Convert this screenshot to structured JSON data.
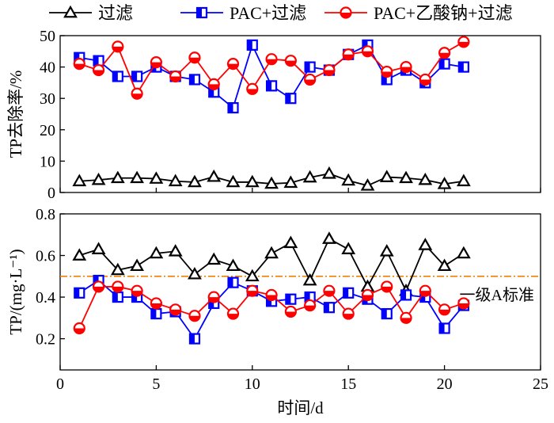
{
  "chart_data": [
    {
      "type": "line",
      "panel": "top",
      "ylabel": "TP去除率/%",
      "ylim": [
        0,
        50
      ],
      "yticks": [
        0,
        10,
        20,
        30,
        40,
        50
      ],
      "xlim": [
        0,
        25
      ],
      "grid": false,
      "legend": "top (shared)",
      "series": [
        {
          "name": "过滤",
          "color": "#000000",
          "marker": "triangle",
          "x": [
            1,
            2,
            3,
            4,
            5,
            6,
            7,
            8,
            9,
            10,
            11,
            12,
            13,
            14,
            15,
            16,
            17,
            18,
            19,
            20,
            21
          ],
          "values": [
            3.6,
            4.0,
            4.6,
            4.6,
            4.4,
            3.6,
            3.3,
            5.0,
            3.3,
            3.3,
            2.8,
            3.1,
            4.8,
            6.0,
            3.8,
            2.2,
            4.9,
            4.6,
            4.0,
            2.7,
            3.6
          ]
        },
        {
          "name": "PAC+过滤",
          "color": "#0000ff",
          "marker": "square",
          "x": [
            1,
            2,
            3,
            4,
            5,
            6,
            7,
            8,
            9,
            10,
            11,
            12,
            13,
            14,
            15,
            16,
            17,
            18,
            19,
            20,
            21
          ],
          "values": [
            43,
            42,
            37,
            37,
            40,
            37,
            36,
            32,
            27,
            47,
            34,
            30,
            40,
            39,
            44,
            47,
            36,
            39,
            35,
            41,
            40
          ]
        },
        {
          "name": "PAC+乙酸钠+过滤",
          "color": "#ff0000",
          "marker": "circle",
          "x": [
            1,
            2,
            3,
            4,
            5,
            6,
            7,
            8,
            9,
            10,
            11,
            12,
            13,
            14,
            15,
            16,
            17,
            18,
            19,
            20,
            21
          ],
          "values": [
            41,
            39,
            46.5,
            31.5,
            41.5,
            37,
            43,
            34.5,
            41,
            33,
            42.5,
            42,
            36,
            39,
            44,
            45,
            38.5,
            40,
            36,
            44.5,
            48
          ]
        }
      ]
    },
    {
      "type": "line",
      "panel": "bottom",
      "xlabel": "时间/d",
      "ylabel": "TP/(mg·L⁻¹)",
      "ylim": [
        0.05,
        0.8
      ],
      "yticks": [
        0.2,
        0.4,
        0.6,
        0.8
      ],
      "xlim": [
        0,
        25
      ],
      "xticks": [
        0,
        5,
        10,
        15,
        20,
        25
      ],
      "grid": false,
      "reference_line": {
        "y": 0.5,
        "label": "一级A标准",
        "color": "#f08000"
      },
      "series": [
        {
          "name": "过滤",
          "color": "#000000",
          "marker": "triangle",
          "x": [
            1,
            2,
            3,
            4,
            5,
            6,
            7,
            8,
            9,
            10,
            11,
            12,
            13,
            14,
            15,
            16,
            17,
            18,
            19,
            20,
            21
          ],
          "values": [
            0.6,
            0.63,
            0.53,
            0.55,
            0.61,
            0.62,
            0.51,
            0.58,
            0.55,
            0.5,
            0.61,
            0.66,
            0.48,
            0.68,
            0.63,
            0.45,
            0.62,
            0.43,
            0.65,
            0.55,
            0.61
          ]
        },
        {
          "name": "PAC+过滤",
          "color": "#0000ff",
          "marker": "square",
          "x": [
            1,
            2,
            3,
            4,
            5,
            6,
            7,
            8,
            9,
            10,
            11,
            12,
            13,
            14,
            15,
            16,
            17,
            18,
            19,
            20,
            21
          ],
          "values": [
            0.42,
            0.48,
            0.4,
            0.4,
            0.32,
            0.33,
            0.2,
            0.37,
            0.47,
            0.43,
            0.38,
            0.39,
            0.4,
            0.35,
            0.42,
            0.39,
            0.32,
            0.41,
            0.4,
            0.25,
            0.36
          ]
        },
        {
          "name": "PAC+乙酸钠+过滤",
          "color": "#ff0000",
          "marker": "circle",
          "x": [
            1,
            2,
            3,
            4,
            5,
            6,
            7,
            8,
            9,
            10,
            11,
            12,
            13,
            14,
            15,
            16,
            17,
            18,
            19,
            20,
            21
          ],
          "values": [
            0.25,
            0.45,
            0.45,
            0.43,
            0.37,
            0.34,
            0.31,
            0.4,
            0.32,
            0.43,
            0.41,
            0.33,
            0.36,
            0.43,
            0.32,
            0.41,
            0.45,
            0.3,
            0.43,
            0.34,
            0.37
          ]
        }
      ]
    }
  ]
}
